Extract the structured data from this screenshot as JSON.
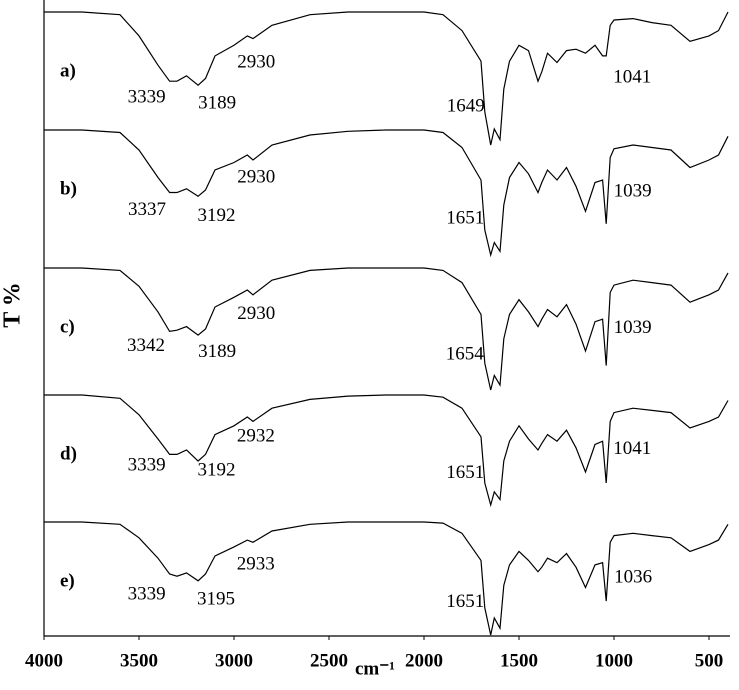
{
  "chart_data": {
    "type": "line",
    "y_label": "T %",
    "x_label": "cm⁻¹",
    "xlim": [
      4000,
      400
    ],
    "xticks": [
      4000,
      3500,
      3000,
      2500,
      2000,
      1500,
      1000,
      500
    ],
    "ylim": [
      0,
      100
    ],
    "x": [
      4000,
      3800,
      3600,
      3500,
      3400,
      3339,
      3300,
      3250,
      3189,
      3150,
      3100,
      3000,
      2930,
      2900,
      2800,
      2600,
      2400,
      2200,
      2000,
      1900,
      1800,
      1700,
      1680,
      1649,
      1630,
      1600,
      1580,
      1550,
      1500,
      1450,
      1400,
      1380,
      1350,
      1300,
      1250,
      1200,
      1150,
      1100,
      1060,
      1041,
      1020,
      1000,
      900,
      800,
      700,
      600,
      500,
      450,
      400
    ],
    "series": [
      {
        "name": "a)",
        "color": "#000000",
        "peaks": [
          3339,
          3189,
          2930,
          1649,
          1041
        ],
        "values": [
          100,
          100,
          98,
          82,
          60,
          48,
          48,
          52,
          45,
          50,
          67,
          75,
          82,
          80,
          90,
          98,
          100,
          100,
          100,
          98,
          86,
          63,
          25,
          0,
          12,
          4,
          42,
          63,
          75,
          71,
          48,
          55,
          69,
          62,
          71,
          72,
          69,
          75,
          67,
          67,
          90,
          94,
          95,
          92,
          90,
          78,
          82,
          86,
          100
        ]
      },
      {
        "name": "b)",
        "color": "#000000",
        "peaks": [
          3337,
          3192,
          2930,
          1651,
          1039
        ],
        "values": [
          100,
          100,
          98,
          84,
          62,
          50,
          50,
          53,
          47,
          52,
          68,
          74,
          80,
          76,
          88,
          96,
          99,
          100,
          100,
          98,
          86,
          60,
          20,
          0,
          10,
          3,
          40,
          62,
          74,
          65,
          50,
          58,
          68,
          60,
          70,
          55,
          35,
          58,
          60,
          25,
          78,
          85,
          88,
          86,
          84,
          70,
          76,
          80,
          95
        ]
      },
      {
        "name": "c)",
        "color": "#000000",
        "peaks": [
          3342,
          3189,
          2930,
          1654,
          1039
        ],
        "values": [
          100,
          100,
          98,
          85,
          64,
          48,
          49,
          52,
          45,
          50,
          68,
          76,
          82,
          78,
          90,
          98,
          100,
          100,
          100,
          98,
          88,
          62,
          22,
          0,
          12,
          4,
          42,
          62,
          74,
          64,
          52,
          58,
          66,
          60,
          70,
          54,
          32,
          56,
          58,
          20,
          80,
          86,
          90,
          88,
          86,
          72,
          78,
          82,
          96
        ]
      },
      {
        "name": "d)",
        "color": "#000000",
        "peaks": [
          3339,
          3192,
          2932,
          1651,
          1041
        ],
        "values": [
          100,
          100,
          97,
          82,
          60,
          46,
          46,
          50,
          40,
          46,
          64,
          72,
          80,
          76,
          88,
          96,
          99,
          100,
          100,
          98,
          88,
          62,
          20,
          0,
          12,
          5,
          40,
          58,
          72,
          60,
          50,
          56,
          64,
          58,
          68,
          52,
          30,
          55,
          58,
          20,
          76,
          84,
          88,
          86,
          84,
          70,
          76,
          80,
          95
        ]
      },
      {
        "name": "e)",
        "color": "#000000",
        "peaks": [
          3339,
          3195,
          2933,
          1651,
          1036
        ],
        "values": [
          100,
          100,
          98,
          86,
          68,
          54,
          52,
          55,
          48,
          54,
          70,
          78,
          84,
          82,
          92,
          98,
          100,
          100,
          100,
          99,
          90,
          66,
          24,
          0,
          15,
          6,
          44,
          62,
          74,
          66,
          56,
          60,
          68,
          64,
          72,
          60,
          42,
          62,
          64,
          30,
          82,
          88,
          90,
          88,
          86,
          74,
          80,
          84,
          98
        ]
      }
    ]
  }
}
